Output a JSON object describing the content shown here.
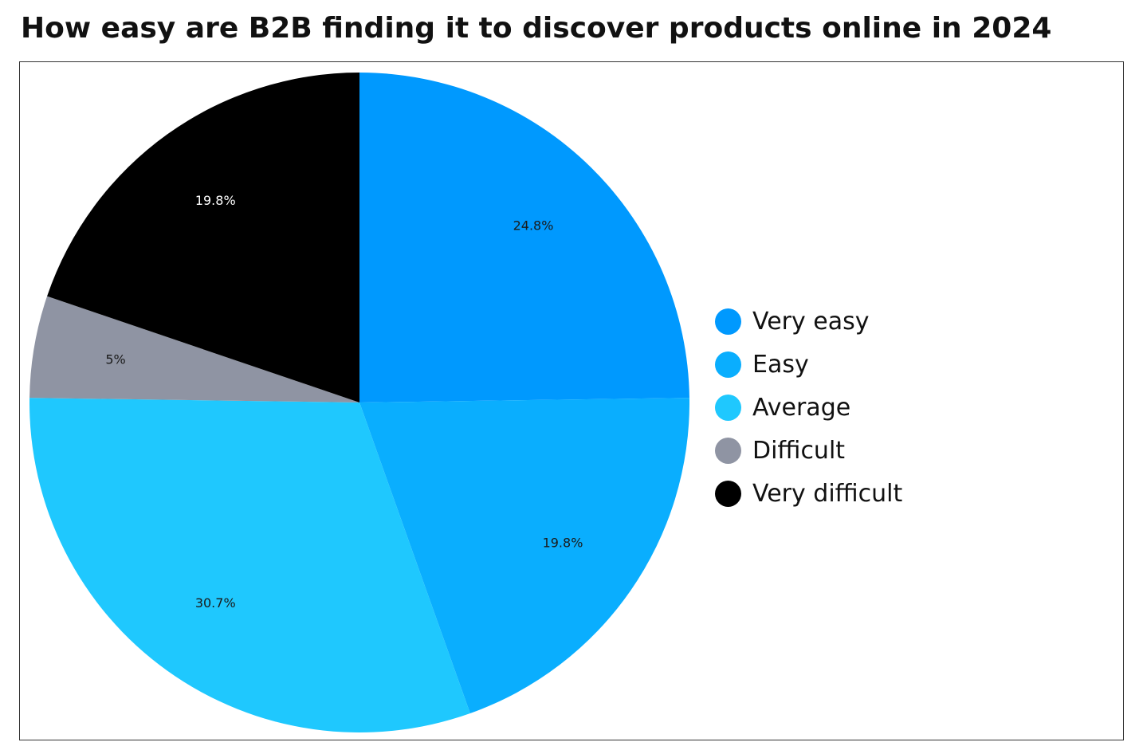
{
  "chart_data": {
    "type": "pie",
    "title": "How easy are B2B finding it to discover products online in 2024",
    "categories": [
      "Very easy",
      "Easy",
      "Average",
      "Difficult",
      "Very difficult"
    ],
    "values": [
      24.8,
      19.8,
      30.7,
      5,
      19.8
    ],
    "value_labels": [
      "24.8%",
      "19.8%",
      "30.7%",
      "5%",
      "19.8%"
    ],
    "colors": [
      "#0099fe",
      "#0aaefe",
      "#1fc8fe",
      "#8f94a3",
      "#000000"
    ],
    "label_colors": [
      "#1a1a1a",
      "#1a1a1a",
      "#1a1a1a",
      "#1a1a1a",
      "#ffffff"
    ],
    "legend_position": "right",
    "start_angle": "12 o'clock",
    "direction": "clockwise"
  }
}
